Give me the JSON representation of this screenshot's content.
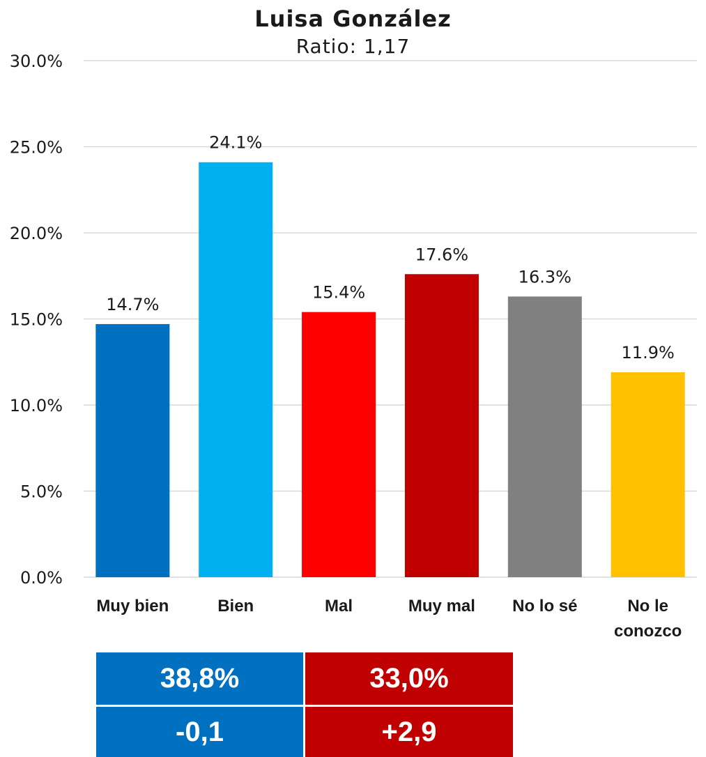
{
  "title": "Luisa González",
  "subtitle": "Ratio: 1,17",
  "chart_data": {
    "type": "bar",
    "title": "Luisa González",
    "subtitle": "Ratio: 1,17",
    "categories": [
      "Muy bien",
      "Bien",
      "Mal",
      "Muy mal",
      "No lo sé",
      "No le conozco"
    ],
    "values": [
      14.7,
      24.1,
      15.4,
      17.6,
      16.3,
      11.9
    ],
    "value_labels": [
      "14.7%",
      "24.1%",
      "15.4%",
      "17.6%",
      "16.3%",
      "11.9%"
    ],
    "colors": [
      "#0070C0",
      "#00B0F0",
      "#FF0000",
      "#C00000",
      "#808080",
      "#FFC000"
    ],
    "ylim": [
      0,
      30
    ],
    "yticks": [
      0,
      5,
      10,
      15,
      20,
      25,
      30
    ],
    "ytick_labels": [
      "0.0%",
      "5.0%",
      "10.0%",
      "15.0%",
      "20.0%",
      "25.0%",
      "30.0%"
    ],
    "xlabel": "",
    "ylabel": "",
    "grid": true,
    "legend": "none"
  },
  "summary": {
    "positive_total": "38,8%",
    "negative_total": "33,0%",
    "positive_change": "-0,1",
    "negative_change": "+2,9",
    "positive_color": "#0070C0",
    "negative_color": "#C00000"
  }
}
